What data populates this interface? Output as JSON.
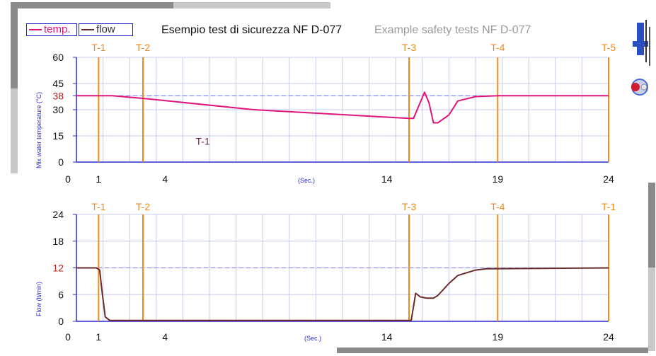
{
  "legend": {
    "temp_label": "temp.",
    "flow_label": "flow",
    "temp_color": "#e0147c",
    "flow_color": "#6b2a2a"
  },
  "title": "Esempio test di sicurezza NF D-077",
  "title_en": "Example safety tests NF D-077",
  "colors": {
    "marker": "#f08a1c",
    "grid": "#c6cbe8",
    "axis_blue": "#2a2ad0",
    "reference": "#7777ee"
  },
  "chart_data": [
    {
      "type": "line",
      "ylabel": "Mix water temperature (°C)",
      "x_unit": "(Sec.)",
      "xlim": [
        0,
        24
      ],
      "ylim": [
        0,
        60
      ],
      "x_ticks": [
        0,
        1,
        4,
        14,
        19,
        24
      ],
      "y_ticks": [
        0,
        15,
        30,
        38,
        45,
        60
      ],
      "y_highlight": 38,
      "reference_line": 38,
      "grid": true,
      "markers": [
        {
          "label": "T-1",
          "x": 1
        },
        {
          "label": "T-2",
          "x": 3
        },
        {
          "label": "T-3",
          "x": 15
        },
        {
          "label": "T-4",
          "x": 19
        },
        {
          "label": "T-5",
          "x": 24
        }
      ],
      "annotation": {
        "text": "T-1",
        "x": 5.7,
        "y": 10
      },
      "series": [
        {
          "name": "temp.",
          "color": "#e0147c",
          "points": [
            [
              0,
              38
            ],
            [
              1.6,
              38
            ],
            [
              3,
              36.5
            ],
            [
              8,
              30
            ],
            [
              15,
              25
            ],
            [
              15.2,
              25
            ],
            [
              15.5,
              34
            ],
            [
              15.7,
              40
            ],
            [
              15.9,
              34
            ],
            [
              16.1,
              22.5
            ],
            [
              16.3,
              22.5
            ],
            [
              16.8,
              27
            ],
            [
              17.2,
              35
            ],
            [
              18,
              37.5
            ],
            [
              19,
              38
            ],
            [
              24,
              38
            ]
          ]
        }
      ]
    },
    {
      "type": "line",
      "ylabel": "Flow (lt/min)",
      "x_unit": "(Sec.)",
      "xlim": [
        0,
        24
      ],
      "ylim": [
        0,
        24
      ],
      "x_ticks": [
        0,
        1,
        4,
        14,
        19,
        24
      ],
      "y_ticks": [
        0,
        6,
        12,
        18,
        24
      ],
      "y_highlight": 12,
      "reference_line": 12,
      "grid": true,
      "markers": [
        {
          "label": "T-1",
          "x": 1
        },
        {
          "label": "T-2",
          "x": 3
        },
        {
          "label": "T-3",
          "x": 15
        },
        {
          "label": "T-4",
          "x": 19
        },
        {
          "label": "T-1",
          "x": 24
        }
      ],
      "series": [
        {
          "name": "flow",
          "color": "#6b2a2a",
          "points": [
            [
              0,
              12
            ],
            [
              0.9,
              12
            ],
            [
              1.05,
              11.5
            ],
            [
              1.15,
              7
            ],
            [
              1.3,
              1
            ],
            [
              1.5,
              0.2
            ],
            [
              15,
              0.2
            ],
            [
              15.1,
              0.2
            ],
            [
              15.3,
              6.3
            ],
            [
              15.5,
              5.5
            ],
            [
              15.8,
              5.2
            ],
            [
              16.1,
              5.2
            ],
            [
              16.3,
              5.8
            ],
            [
              16.8,
              8.5
            ],
            [
              17.2,
              10.3
            ],
            [
              18,
              11.5
            ],
            [
              18.5,
              11.8
            ],
            [
              24,
              12
            ]
          ]
        }
      ]
    }
  ]
}
